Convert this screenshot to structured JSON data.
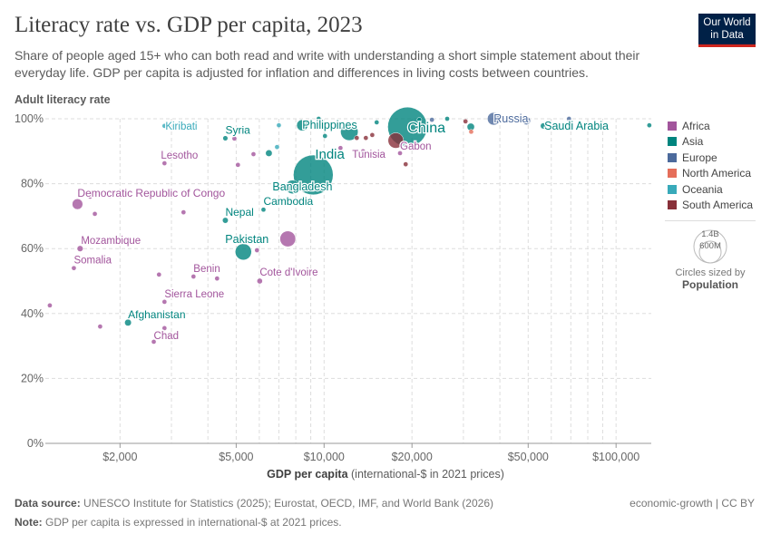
{
  "header": {
    "title": "Literacy rate vs. GDP per capita, 2023",
    "subtitle": "Share of people aged 15+ who can both read and write with understanding a short simple statement about their everyday life. GDP per capita is adjusted for inflation and differences in living costs between countries.",
    "logo_line1": "Our World",
    "logo_line2": "in Data"
  },
  "legend": {
    "items": [
      {
        "label": "Africa",
        "color": "#a2559c"
      },
      {
        "label": "Asia",
        "color": "#00847e"
      },
      {
        "label": "Europe",
        "color": "#4c6a9c"
      },
      {
        "label": "North America",
        "color": "#e56e5a"
      },
      {
        "label": "Oceania",
        "color": "#38aaba"
      },
      {
        "label": "South America",
        "color": "#883039"
      }
    ],
    "size_title": "Circles sized by",
    "size_variable": "Population",
    "size_large": "1.4B",
    "size_small": "600M"
  },
  "footer": {
    "source_label": "Data source:",
    "source": "UNESCO Institute for Statistics (2025); Eurostat, OECD, IMF, and World Bank (2026)",
    "license": "economic-growth | CC BY",
    "note_label": "Note:",
    "note": "GDP per capita is expressed in international-$ at 2021 prices."
  },
  "chart_data": {
    "type": "scatter",
    "title": "Literacy rate vs. GDP per capita, 2023",
    "xlabel": "GDP per capita",
    "xlabel_unit": "(international-$ in 2021 prices)",
    "ylabel": "Adult literacy rate",
    "x_scale": "log",
    "xlim": [
      1110,
      132000
    ],
    "ylim": [
      0,
      100
    ],
    "grid": true,
    "legend_position": "right",
    "x_ticks": [
      {
        "value": 2000,
        "label": "$2,000"
      },
      {
        "value": 5000,
        "label": "$5,000"
      },
      {
        "value": 10000,
        "label": "$10,000"
      },
      {
        "value": 20000,
        "label": "$20,000"
      },
      {
        "value": 50000,
        "label": "$50,000"
      },
      {
        "value": 100000,
        "label": "$100,000"
      }
    ],
    "y_ticks": [
      {
        "value": 0,
        "label": "0%"
      },
      {
        "value": 20,
        "label": "20%"
      },
      {
        "value": 40,
        "label": "40%"
      },
      {
        "value": 60,
        "label": "60%"
      },
      {
        "value": 80,
        "label": "80%"
      },
      {
        "value": 100,
        "label": "100%"
      }
    ],
    "points": [
      {
        "name": "China",
        "region": "Asia",
        "gdp": 19300,
        "literacy": 97.5,
        "pop": 1410,
        "label": true
      },
      {
        "name": "India",
        "region": "Asia",
        "gdp": 9180,
        "literacy": 82.7,
        "pop": 1430,
        "label": true
      },
      {
        "name": "Bangladesh",
        "region": "Asia",
        "gdp": 7790,
        "literacy": 79,
        "pop": 170,
        "label": true
      },
      {
        "name": "Philippines",
        "region": "Asia",
        "gdp": 8420,
        "literacy": 98,
        "pop": 115,
        "label": true
      },
      {
        "name": "Pakistan",
        "region": "Asia",
        "gdp": 5290,
        "literacy": 59,
        "pop": 240,
        "label": true
      },
      {
        "name": "Russia",
        "region": "Europe",
        "gdp": 38100,
        "literacy": 100,
        "pop": 145,
        "label": true
      },
      {
        "name": "Saudi Arabia",
        "region": "Asia",
        "gdp": 56400,
        "literacy": 97.8,
        "pop": 33,
        "label": true
      },
      {
        "name": "Gabon",
        "region": "Africa",
        "gdp": 18200,
        "literacy": 89.4,
        "pop": 2.4,
        "label": true
      },
      {
        "name": "Tunisia",
        "region": "Africa",
        "gdp": 13600,
        "literacy": 90,
        "pop": 12,
        "label": true
      },
      {
        "name": "Cambodia",
        "region": "Asia",
        "gdp": 6200,
        "literacy": 72,
        "pop": 17,
        "label": true
      },
      {
        "name": "Nepal",
        "region": "Asia",
        "gdp": 4590,
        "literacy": 68.7,
        "pop": 30,
        "label": true
      },
      {
        "name": "Syria",
        "region": "Asia",
        "gdp": 4590,
        "literacy": 94,
        "pop": 23,
        "label": true
      },
      {
        "name": "Kiribati",
        "region": "Oceania",
        "gdp": 2840,
        "literacy": 97.8,
        "pop": 0.13,
        "label": true
      },
      {
        "name": "Lesotho",
        "region": "Africa",
        "gdp": 2840,
        "literacy": 86.3,
        "pop": 2.3,
        "label": true
      },
      {
        "name": "Democratic Republic of Congo",
        "region": "Africa",
        "gdp": 1430,
        "literacy": 73.7,
        "pop": 102,
        "label": true
      },
      {
        "name": "Mozambique",
        "region": "Africa",
        "gdp": 1460,
        "literacy": 60,
        "pop": 33,
        "label": true
      },
      {
        "name": "Somalia",
        "region": "Africa",
        "gdp": 1390,
        "literacy": 54,
        "pop": 18,
        "label": true
      },
      {
        "name": "Benin",
        "region": "Africa",
        "gdp": 3570,
        "literacy": 51.4,
        "pop": 13,
        "label": true
      },
      {
        "name": "Cote d'Ivoire",
        "region": "Africa",
        "gdp": 6020,
        "literacy": 50,
        "pop": 28,
        "label": true
      },
      {
        "name": "Sierra Leone",
        "region": "Africa",
        "gdp": 2840,
        "literacy": 43.6,
        "pop": 8.6,
        "label": true
      },
      {
        "name": "Afghanistan",
        "region": "Asia",
        "gdp": 2130,
        "literacy": 37.2,
        "pop": 41,
        "label": true
      },
      {
        "name": "Chad",
        "region": "Africa",
        "gdp": 2610,
        "literacy": 31.3,
        "pop": 18,
        "label": true
      },
      {
        "name": "",
        "region": "Asia",
        "gdp": 12200,
        "literacy": 96,
        "pop": 277
      },
      {
        "name": "",
        "region": "Africa",
        "gdp": 7510,
        "literacy": 63,
        "pop": 223
      },
      {
        "name": "",
        "region": "South America",
        "gdp": 17600,
        "literacy": 93.3,
        "pop": 216
      },
      {
        "name": "",
        "region": "Africa",
        "gdp": 1150,
        "literacy": 42.5,
        "pop": 8
      },
      {
        "name": "",
        "region": "Africa",
        "gdp": 1710,
        "literacy": 36,
        "pop": 10
      },
      {
        "name": "",
        "region": "Africa",
        "gdp": 1640,
        "literacy": 70.7,
        "pop": 8
      },
      {
        "name": "",
        "region": "Africa",
        "gdp": 1580,
        "literacy": 76,
        "pop": 7
      },
      {
        "name": "",
        "region": "Africa",
        "gdp": 2720,
        "literacy": 52,
        "pop": 9
      },
      {
        "name": "",
        "region": "Africa",
        "gdp": 4300,
        "literacy": 50.8,
        "pop": 9
      },
      {
        "name": "",
        "region": "Africa",
        "gdp": 2840,
        "literacy": 35.5,
        "pop": 9
      },
      {
        "name": "",
        "region": "Africa",
        "gdp": 3300,
        "literacy": 71.2,
        "pop": 9
      },
      {
        "name": "",
        "region": "Africa",
        "gdp": 5070,
        "literacy": 85.8,
        "pop": 8
      },
      {
        "name": "",
        "region": "Africa",
        "gdp": 4930,
        "literacy": 93.9,
        "pop": 8
      },
      {
        "name": "",
        "region": "Africa",
        "gdp": 5730,
        "literacy": 89.1,
        "pop": 6
      },
      {
        "name": "",
        "region": "Asia",
        "gdp": 6470,
        "literacy": 89.4,
        "pop": 40
      },
      {
        "name": "",
        "region": "Oceania",
        "gdp": 6900,
        "literacy": 91.3,
        "pop": 9
      },
      {
        "name": "",
        "region": "Oceania",
        "gdp": 7000,
        "literacy": 98,
        "pop": 5
      },
      {
        "name": "",
        "region": "Asia",
        "gdp": 9580,
        "literacy": 100,
        "pop": 10
      },
      {
        "name": "",
        "region": "Asia",
        "gdp": 10070,
        "literacy": 94.7,
        "pop": 8
      },
      {
        "name": "",
        "region": "Africa",
        "gdp": 11380,
        "literacy": 91,
        "pop": 6
      },
      {
        "name": "",
        "region": "South America",
        "gdp": 12940,
        "literacy": 94.1,
        "pop": 12
      },
      {
        "name": "",
        "region": "South America",
        "gdp": 13900,
        "literacy": 94.1,
        "pop": 8
      },
      {
        "name": "",
        "region": "South America",
        "gdp": 14620,
        "literacy": 95,
        "pop": 8
      },
      {
        "name": "",
        "region": "Asia",
        "gdp": 15140,
        "literacy": 98.9,
        "pop": 10
      },
      {
        "name": "",
        "region": "South America",
        "gdp": 19030,
        "literacy": 86,
        "pop": 4
      },
      {
        "name": "",
        "region": "Asia",
        "gdp": 21200,
        "literacy": 99.7,
        "pop": 8
      },
      {
        "name": "",
        "region": "Europe",
        "gdp": 23400,
        "literacy": 99.7,
        "pop": 8
      },
      {
        "name": "",
        "region": "Asia",
        "gdp": 26400,
        "literacy": 100,
        "pop": 5
      },
      {
        "name": "",
        "region": "South America",
        "gdp": 30500,
        "literacy": 99.2,
        "pop": 5
      },
      {
        "name": "",
        "region": "Asia",
        "gdp": 31800,
        "literacy": 97.5,
        "pop": 50
      },
      {
        "name": "",
        "region": "North America",
        "gdp": 31900,
        "literacy": 96,
        "pop": 5
      },
      {
        "name": "",
        "region": "Europe",
        "gdp": 43600,
        "literacy": 100,
        "pop": 40
      },
      {
        "name": "",
        "region": "Europe",
        "gdp": 49300,
        "literacy": 99.4,
        "pop": 60
      },
      {
        "name": "",
        "region": "Europe",
        "gdp": 69000,
        "literacy": 100,
        "pop": 5
      },
      {
        "name": "",
        "region": "Asia",
        "gdp": 130000,
        "literacy": 98,
        "pop": 3
      },
      {
        "name": "",
        "region": "Africa",
        "gdp": 5890,
        "literacy": 59.5,
        "pop": 6
      }
    ]
  }
}
